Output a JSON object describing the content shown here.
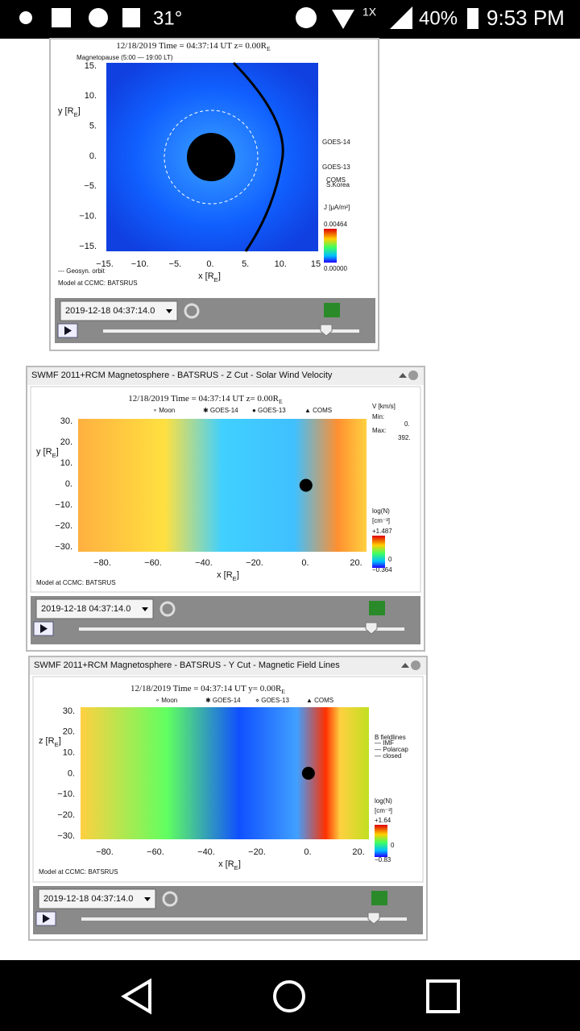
{
  "status_bar": {
    "temperature": "31°",
    "network": "1X",
    "battery": "40%",
    "time": "9:53 PM"
  },
  "panels": [
    {
      "title": [
        "12/18/2019 Time = 04:37:14 UT z= 0.00R",
        "E"
      ],
      "legend": [
        "Magnetopause (5:00 — 19:00 LT)"
      ],
      "y_label": [
        "y [R",
        "E",
        "]"
      ],
      "x_label": [
        "x [R",
        "E",
        "]"
      ],
      "y_ticks": [
        "15.",
        "10.",
        "5.",
        "0.",
        "−5.",
        "−10.",
        "−15."
      ],
      "x_ticks": [
        "−15.",
        "−10.",
        "−5.",
        "0.",
        "5.",
        "10.",
        "15"
      ],
      "side": [
        "GOES-14",
        "GOES-13",
        "COMS",
        "S.Korea",
        "J [μA/m²]",
        "0.00464",
        "0.00000"
      ],
      "notes": [
        "--- Geosyn. orbit",
        "Model at CCMC: BATSRUS"
      ],
      "date": "2019-12-18 04:37:14.0"
    },
    {
      "header": "SWMF 2011+RCM Magnetosphere - BATSRUS - Z Cut - Solar Wind Velocity",
      "title": [
        "12/18/2019 Time = 04:37:14 UT z= 0.00R",
        "E"
      ],
      "legend": [
        "∘ Moon",
        "✱ GOES-14",
        "● GOES-13",
        "▲ COMS"
      ],
      "y_label": [
        "y [R",
        "E",
        "]"
      ],
      "x_label": [
        "x [R",
        "E",
        "]"
      ],
      "y_ticks": [
        "30.",
        "20.",
        "10.",
        "0.",
        "−10.",
        "−20.",
        "−30."
      ],
      "x_ticks": [
        "−80.",
        "−60.",
        "−40.",
        "−20.",
        "0.",
        "20."
      ],
      "side": [
        "V [km/s]",
        "Min:",
        "0.",
        "Max:",
        "392.",
        "log(N)",
        "[cm⁻³]",
        "+1.487",
        "0",
        "−0.364"
      ],
      "notes": [
        "Model at CCMC: BATSRUS"
      ],
      "date": "2019-12-18 04:37:14.0"
    },
    {
      "header": "SWMF 2011+RCM Magnetosphere - BATSRUS - Y Cut - Magnetic Field Lines",
      "title": [
        "12/18/2019 Time = 04:37:14 UT y= 0.00R",
        "E"
      ],
      "legend": [
        "∘ Moon",
        "✱ GOES-14",
        "⋄ GOES-13",
        "▲ COMS"
      ],
      "y_label": [
        "z [R",
        "E",
        "]"
      ],
      "x_label": [
        "x [R",
        "E",
        "]"
      ],
      "y_ticks": [
        "30.",
        "20.",
        "10.",
        "0.",
        "−10.",
        "−20.",
        "−30."
      ],
      "x_ticks": [
        "−80.",
        "−60.",
        "−40.",
        "−20.",
        "0.",
        "20."
      ],
      "side": [
        "B fieldlines",
        "— IMF",
        "— Polarcap",
        "— closed",
        "log(N)",
        "[cm⁻³]",
        "+1.64",
        "0",
        "−0.83"
      ],
      "notes": [
        "Model at CCMC: BATSRUS"
      ],
      "date": "2019-12-18 04:37:14.0"
    }
  ]
}
